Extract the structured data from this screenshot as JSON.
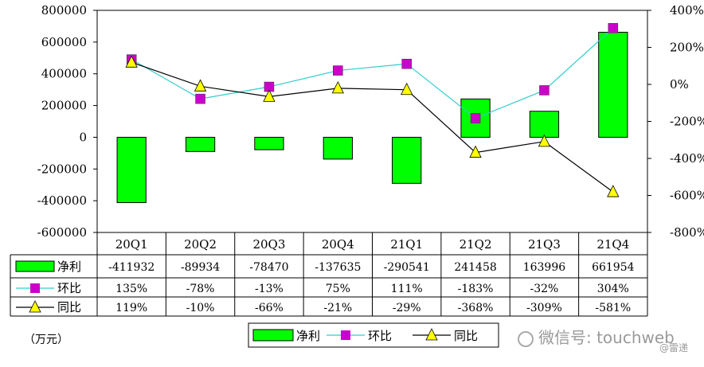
{
  "chart_data": {
    "type": "bar",
    "categories": [
      "20Q1",
      "20Q2",
      "20Q3",
      "20Q4",
      "21Q1",
      "21Q2",
      "21Q3",
      "21Q4"
    ],
    "series": [
      {
        "name": "净利",
        "kind": "bar",
        "axis": "left",
        "color": "#00ff00",
        "values": [
          -411932,
          -89934,
          -78470,
          -137635,
          -290541,
          241458,
          163996,
          661954
        ],
        "labels": [
          "-411932",
          "-89934",
          "-78470",
          "-137635",
          "-290541",
          "241458",
          "163996",
          "661954"
        ]
      },
      {
        "name": "环比",
        "kind": "line",
        "axis": "right",
        "color": "#33cccc",
        "marker": "square",
        "marker_color": "#cc00cc",
        "values": [
          135,
          -78,
          -13,
          75,
          111,
          -183,
          -32,
          304
        ],
        "labels": [
          "135%",
          "-78%",
          "-13%",
          "75%",
          "111%",
          "-183%",
          "-32%",
          "304%"
        ]
      },
      {
        "name": "同比",
        "kind": "line",
        "axis": "right",
        "color": "#000000",
        "marker": "triangle",
        "marker_color": "#ffff00",
        "values": [
          119,
          -10,
          -66,
          -21,
          -29,
          -368,
          -309,
          -581
        ],
        "labels": [
          "119%",
          "-10%",
          "-66%",
          "-21%",
          "-29%",
          "-368%",
          "-309%",
          "-581%"
        ]
      }
    ],
    "left_axis": {
      "min": -600000,
      "max": 800000,
      "step": 200000,
      "ticks": [
        "800000",
        "600000",
        "400000",
        "200000",
        "0",
        "-200000",
        "-400000",
        "-600000"
      ]
    },
    "right_axis": {
      "min": -800,
      "max": 400,
      "step": 200,
      "ticks": [
        "400%",
        "200%",
        "0%",
        "-200%",
        "-400%",
        "-600%",
        "-800%"
      ]
    },
    "unit_label": "（万元）",
    "legend_position": "bottom-center",
    "grid": false
  },
  "watermark": {
    "text": "微信号: touchweb",
    "sub": "@雷递"
  }
}
